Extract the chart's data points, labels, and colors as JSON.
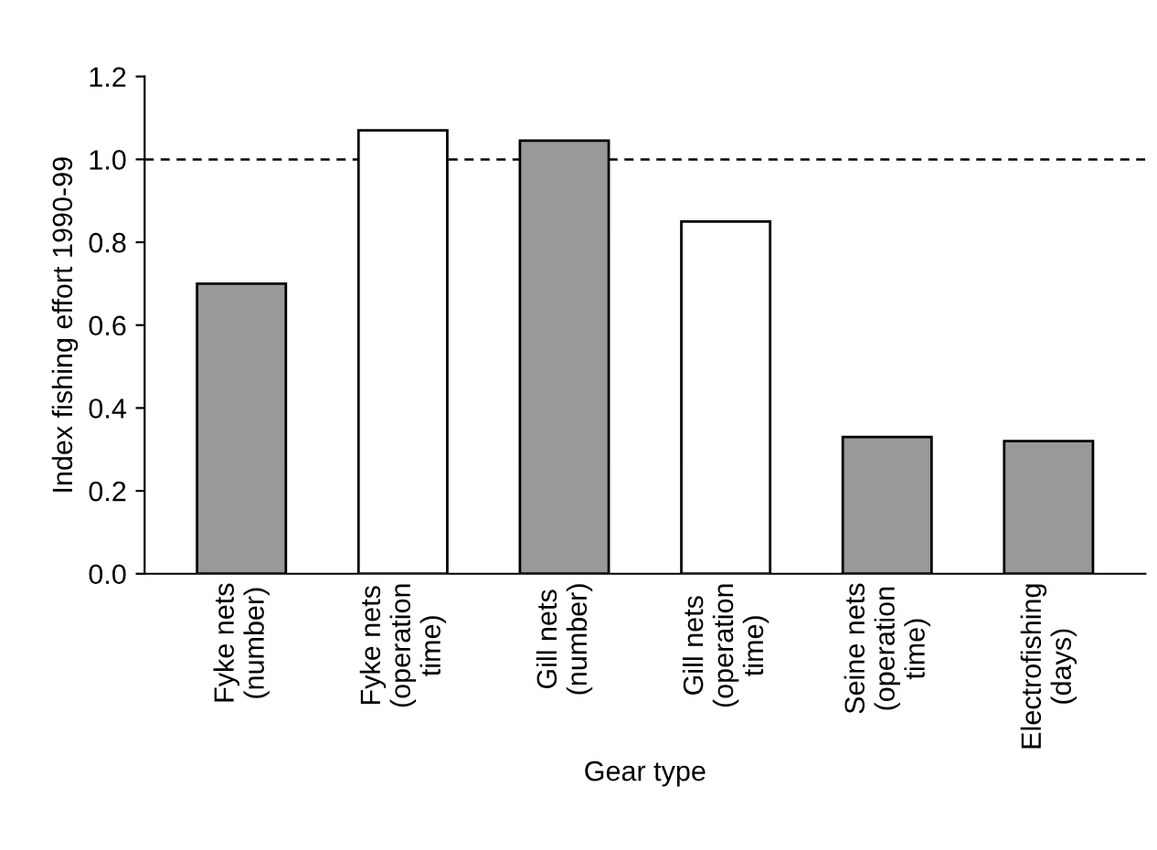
{
  "chart_data": {
    "type": "bar",
    "categories": [
      "Fyke nets\n(number)",
      "Fyke nets\n(operation\ntime)",
      "Gill nets\n(number)",
      "Gill nets\n(operation\ntime)",
      "Seine nets\n(operation\ntime)",
      "Electrofishing\n(days)"
    ],
    "values": [
      0.7,
      1.07,
      1.045,
      0.85,
      0.33,
      0.32
    ],
    "colors": [
      "#999999",
      "#ffffff",
      "#999999",
      "#ffffff",
      "#999999",
      "#999999"
    ],
    "xlabel": "Gear type",
    "ylabel": "Index fishing effort 1990-99",
    "ylim": [
      0,
      1.2
    ],
    "yticks": [
      {
        "value": 0,
        "label": "0.0"
      },
      {
        "value": 0.2,
        "label": "0.2"
      },
      {
        "value": 0.4,
        "label": "0.4"
      },
      {
        "value": 0.6,
        "label": "0.6"
      },
      {
        "value": 0.8,
        "label": "0.8"
      },
      {
        "value": 1.0,
        "label": "1.0"
      },
      {
        "value": 1.2,
        "label": "1.2"
      }
    ],
    "ref_lines": [
      {
        "axis": "y",
        "value": 1.0,
        "line_style": "dashed",
        "color": "#000000"
      }
    ],
    "grid": false
  }
}
